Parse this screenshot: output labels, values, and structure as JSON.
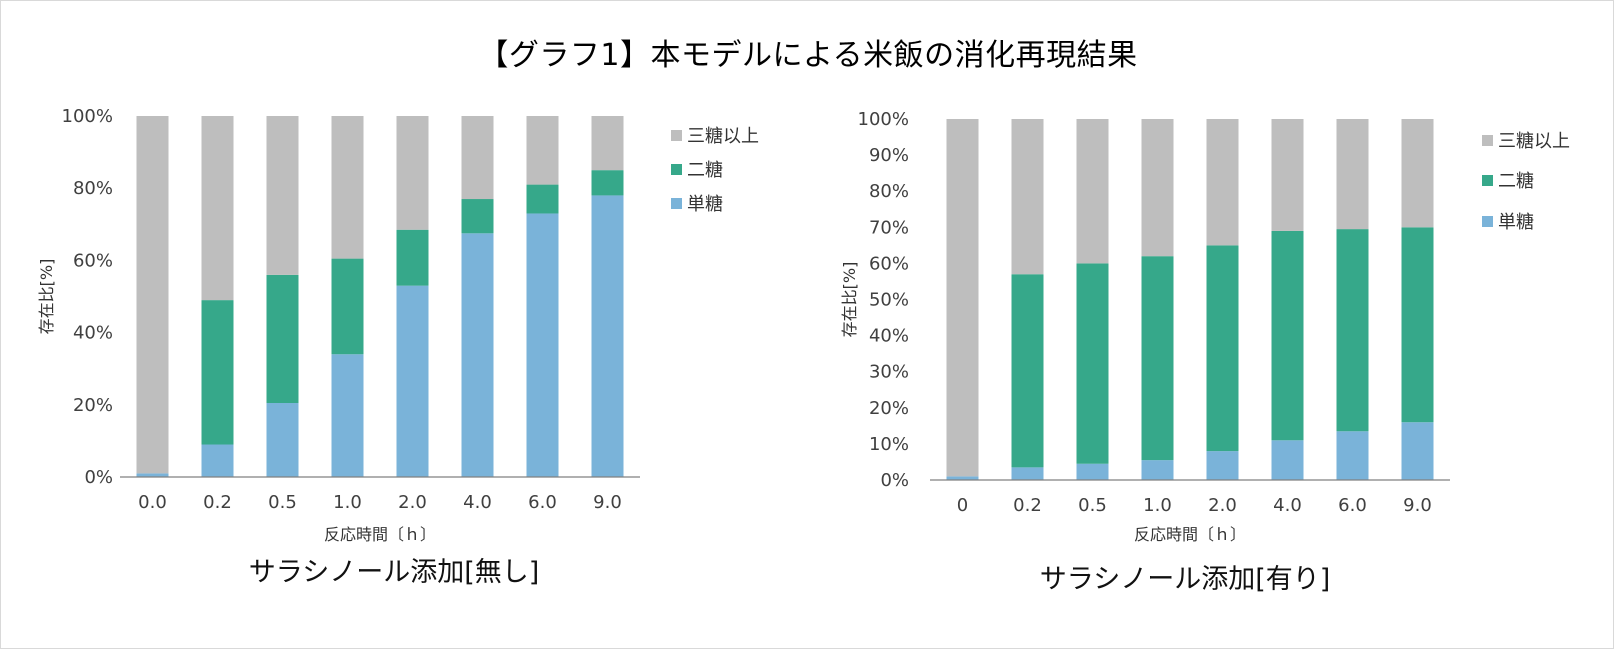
{
  "main_title": "【グラフ1】本モデルによる米飯の消化再現結果",
  "colors": {
    "monosaccharide": "#7ab3d9",
    "disaccharide": "#36a88a",
    "trisaccharide_plus": "#bebebe",
    "axis": "#808080"
  },
  "chart_data": [
    {
      "type": "bar",
      "stacked": true,
      "title": "サラシノール添加[無し]",
      "xlabel": "反応時間〔ｈ〕",
      "ylabel": "存在比[%]",
      "ylim": [
        0,
        100
      ],
      "ytick_labels": [
        "0%",
        "20%",
        "40%",
        "60%",
        "80%",
        "100%"
      ],
      "categories": [
        "0.0",
        "0.2",
        "0.5",
        "1.0",
        "2.0",
        "4.0",
        "6.0",
        "9.0"
      ],
      "legend_position": "right-top",
      "series": [
        {
          "name": "単糖",
          "color": "#7ab3d9",
          "values": [
            1,
            9,
            20.5,
            34,
            53,
            67.5,
            73,
            78
          ]
        },
        {
          "name": "二糖",
          "color": "#36a88a",
          "values": [
            0,
            40,
            35.5,
            26.5,
            15.5,
            9.5,
            8,
            7
          ]
        },
        {
          "name": "三糖以上",
          "color": "#bebebe",
          "values": [
            99,
            51,
            44,
            39.5,
            31.5,
            23,
            19,
            15
          ]
        }
      ]
    },
    {
      "type": "bar",
      "stacked": true,
      "title": "サラシノール添加[有り]",
      "xlabel": "反応時間〔ｈ〕",
      "ylabel": "存在比[%]",
      "ylim": [
        0,
        100
      ],
      "ytick_labels": [
        "0%",
        "10%",
        "20%",
        "30%",
        "40%",
        "50%",
        "60%",
        "70%",
        "80%",
        "90%",
        "100%"
      ],
      "categories": [
        "0",
        "0.2",
        "0.5",
        "1.0",
        "2.0",
        "4.0",
        "6.0",
        "9.0"
      ],
      "legend_position": "right-top",
      "series": [
        {
          "name": "単糖",
          "color": "#7ab3d9",
          "values": [
            1,
            3.5,
            4.5,
            5.5,
            8,
            11,
            13.5,
            16
          ]
        },
        {
          "name": "二糖",
          "color": "#36a88a",
          "values": [
            0,
            53.5,
            55.5,
            56.5,
            57,
            58,
            56,
            54
          ]
        },
        {
          "name": "三糖以上",
          "color": "#bebebe",
          "values": [
            99,
            43,
            40,
            38,
            35,
            31,
            30.5,
            30
          ]
        }
      ]
    }
  ]
}
